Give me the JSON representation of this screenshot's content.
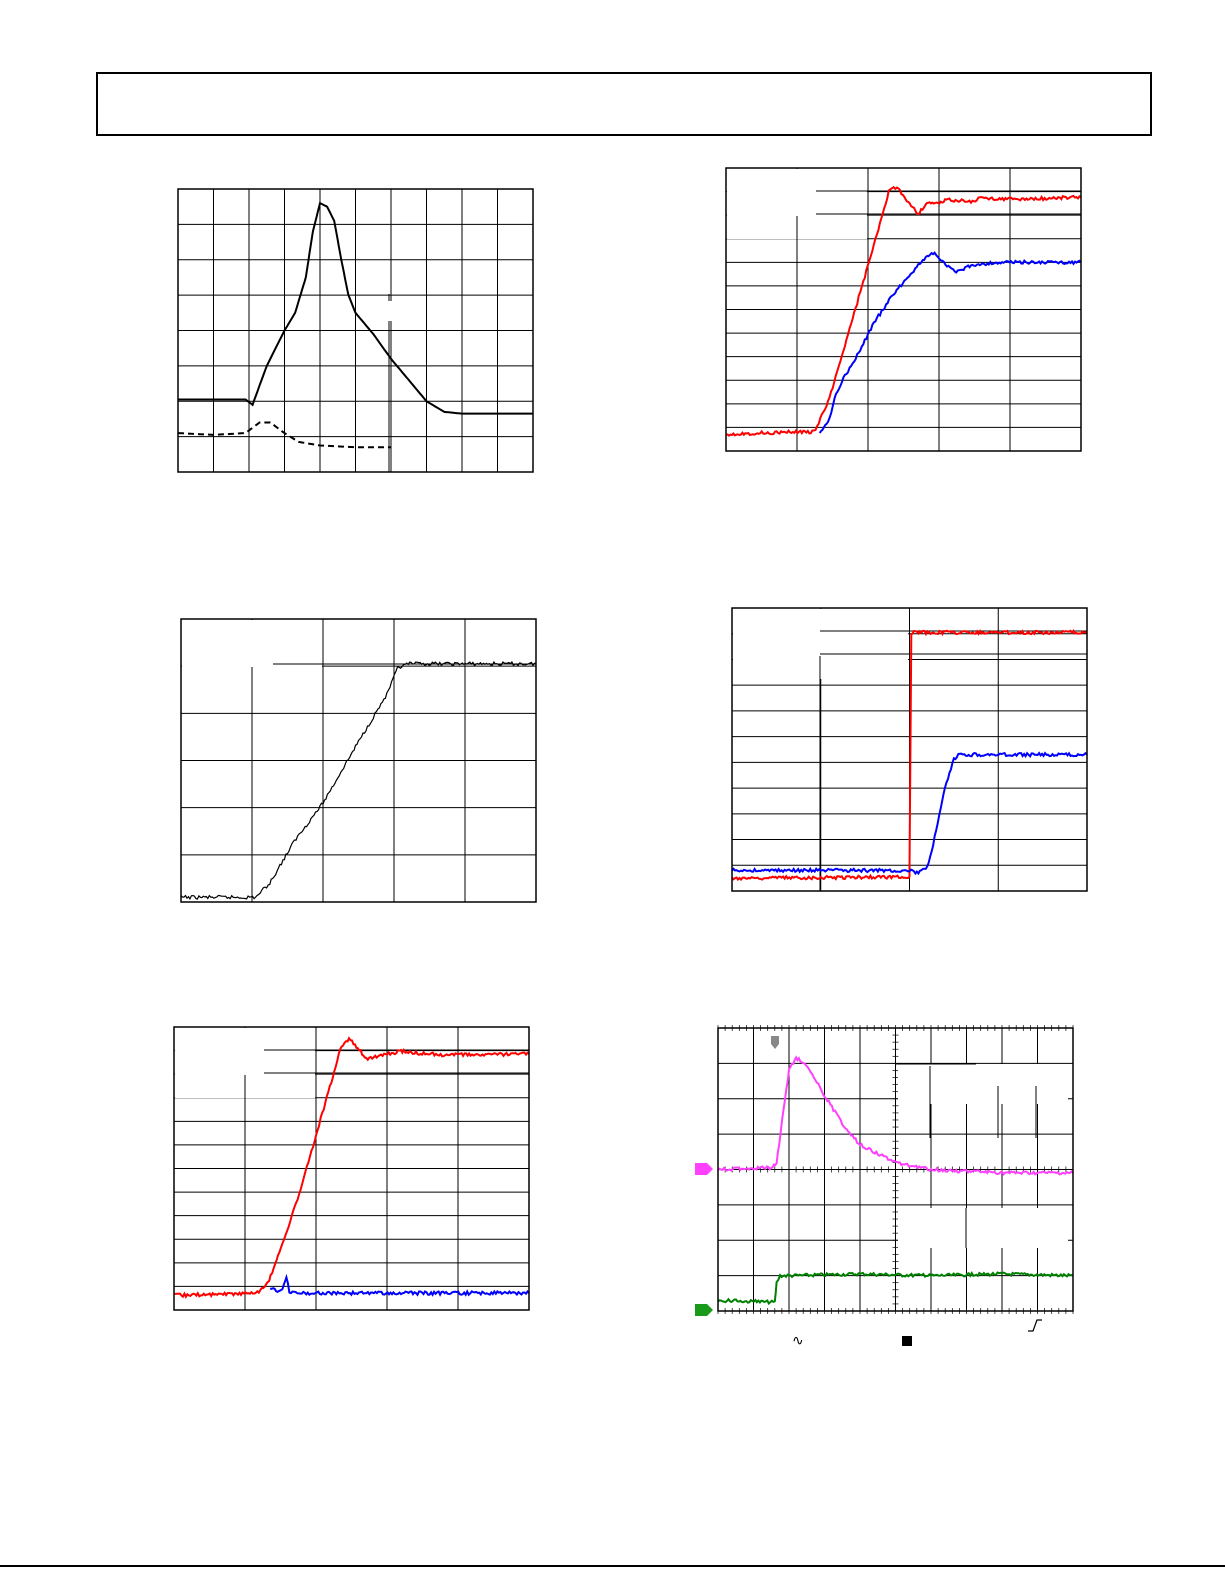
{
  "header": {
    "title": ""
  },
  "colors": {
    "red": "#ff0000",
    "blue": "#0000ff",
    "black": "#000000",
    "magenta": "#ff40ff",
    "green": "#008000",
    "marker_magenta": "#ff40ff",
    "marker_green": "#1a9a1a",
    "trigger_gray": "#888888"
  },
  "footer": {
    "ac_coupling_icon": "∿",
    "run_state_icon": "square-icon",
    "trigger_edge_icon": "rising-edge-icon"
  },
  "chart_data": [
    {
      "id": "panel-1",
      "type": "line",
      "title": "",
      "xlabel": "",
      "ylabel": "",
      "grid": true,
      "x_divisions": 10,
      "y_divisions": 8,
      "series": [
        {
          "style": "solid",
          "color": "#000000",
          "points": [
            [
              0,
              5.95
            ],
            [
              1,
              5.95
            ],
            [
              1.9,
              5.95
            ],
            [
              2.1,
              6.1
            ],
            [
              2.5,
              5.0
            ],
            [
              3.0,
              4.0
            ],
            [
              3.3,
              3.5
            ],
            [
              3.6,
              2.5
            ],
            [
              3.8,
              1.2
            ],
            [
              4.0,
              0.4
            ],
            [
              4.2,
              0.5
            ],
            [
              4.4,
              0.9
            ],
            [
              4.6,
              2.0
            ],
            [
              4.8,
              3.0
            ],
            [
              5.0,
              3.5
            ],
            [
              5.5,
              4.1
            ],
            [
              6.0,
              4.8
            ],
            [
              6.5,
              5.4
            ],
            [
              7.0,
              6.0
            ],
            [
              7.5,
              6.3
            ],
            [
              8.0,
              6.35
            ],
            [
              10,
              6.35
            ]
          ]
        },
        {
          "style": "dashed",
          "color": "#000000",
          "points": [
            [
              0,
              6.9
            ],
            [
              1,
              6.95
            ],
            [
              1.9,
              6.9
            ],
            [
              2.3,
              6.6
            ],
            [
              2.6,
              6.6
            ],
            [
              3.0,
              6.9
            ],
            [
              3.4,
              7.15
            ],
            [
              4.0,
              7.25
            ],
            [
              5.0,
              7.3
            ],
            [
              6.0,
              7.3
            ]
          ]
        }
      ]
    },
    {
      "id": "panel-2",
      "type": "line",
      "title": "",
      "xlabel": "",
      "ylabel": "",
      "grid": true,
      "x_divisions": 5,
      "y_divisions": 6,
      "series": [
        {
          "color": "#000000",
          "points": [
            [
              0,
              5.9
            ],
            [
              1.05,
              5.9
            ],
            [
              1.25,
              5.6
            ],
            [
              1.6,
              4.7
            ],
            [
              2.0,
              3.9
            ],
            [
              2.5,
              2.6
            ],
            [
              2.9,
              1.6
            ],
            [
              3.05,
              1.05
            ],
            [
              3.2,
              0.95
            ],
            [
              5,
              0.95
            ]
          ]
        }
      ]
    },
    {
      "id": "panel-3",
      "type": "line",
      "title": "",
      "xlabel": "",
      "ylabel": "",
      "grid": true,
      "x_divisions": 5,
      "y_divisions": 12,
      "series": [
        {
          "color": "#ff0000",
          "points": [
            [
              0,
              11.0
            ],
            [
              1.75,
              10.9
            ],
            [
              1.85,
              10.7
            ],
            [
              2.1,
              9.5
            ],
            [
              2.6,
              6.0
            ],
            [
              3.0,
              3.2
            ],
            [
              3.3,
              1.0
            ],
            [
              3.4,
              0.8
            ],
            [
              3.5,
              0.9
            ],
            [
              3.7,
              1.4
            ],
            [
              3.9,
              1.9
            ],
            [
              4.1,
              1.4
            ],
            [
              4.3,
              1.5
            ],
            [
              4.5,
              1.3
            ],
            [
              5.0,
              1.4
            ],
            [
              5.15,
              1.25
            ],
            [
              6.0,
              1.3
            ],
            [
              7.2,
              1.2
            ]
          ]
        },
        {
          "color": "#0000ff",
          "points": [
            [
              1.9,
              10.9
            ],
            [
              2.1,
              10.4
            ],
            [
              2.2,
              9.5
            ],
            [
              2.35,
              8.8
            ],
            [
              2.6,
              8.0
            ],
            [
              3.0,
              6.4
            ],
            [
              3.4,
              5.2
            ],
            [
              3.9,
              4.0
            ],
            [
              4.2,
              3.5
            ],
            [
              4.45,
              4.0
            ],
            [
              4.7,
              4.3
            ],
            [
              5.0,
              4.0
            ],
            [
              5.6,
              3.9
            ],
            [
              6.5,
              3.9
            ],
            [
              7.2,
              3.9
            ]
          ]
        }
      ]
    },
    {
      "id": "panel-4",
      "type": "line",
      "title": "",
      "xlabel": "",
      "ylabel": "",
      "grid": true,
      "x_divisions": 4,
      "y_divisions": 11,
      "series": [
        {
          "color": "#ff0000",
          "points": [
            [
              0,
              10.5
            ],
            [
              2.0,
              10.45
            ],
            [
              2.0,
              10.2
            ],
            [
              2.02,
              1.0
            ],
            [
              2.05,
              0.95
            ],
            [
              4.0,
              0.95
            ]
          ]
        },
        {
          "color": "#0000ff",
          "points": [
            [
              0,
              10.2
            ],
            [
              2.0,
              10.2
            ],
            [
              2.1,
              10.3
            ],
            [
              2.2,
              10.1
            ],
            [
              2.3,
              8.7
            ],
            [
              2.4,
              7.0
            ],
            [
              2.5,
              5.9
            ],
            [
              2.55,
              5.7
            ],
            [
              2.7,
              5.7
            ],
            [
              4.0,
              5.7
            ]
          ]
        }
      ]
    },
    {
      "id": "panel-5",
      "type": "line",
      "title": "",
      "xlabel": "",
      "ylabel": "",
      "grid": true,
      "x_divisions": 5,
      "y_divisions": 12,
      "series": [
        {
          "color": "#ff0000",
          "points": [
            [
              0,
              11.1
            ],
            [
              1.6,
              11.0
            ],
            [
              1.75,
              10.9
            ],
            [
              1.9,
              10.6
            ],
            [
              2.2,
              9.0
            ],
            [
              2.6,
              6.5
            ],
            [
              3.1,
              2.9
            ],
            [
              3.4,
              0.75
            ],
            [
              3.55,
              0.5
            ],
            [
              3.7,
              0.8
            ],
            [
              3.9,
              1.3
            ],
            [
              4.2,
              1.2
            ],
            [
              4.6,
              1.0
            ],
            [
              5.0,
              1.1
            ],
            [
              5.5,
              1.15
            ],
            [
              6.5,
              1.15
            ],
            [
              7.2,
              1.1
            ]
          ]
        },
        {
          "color": "#0000ff",
          "points": [
            [
              1.95,
              10.85
            ],
            [
              2.1,
              10.9
            ],
            [
              2.2,
              10.9
            ],
            [
              2.28,
              10.3
            ],
            [
              2.34,
              10.95
            ],
            [
              2.5,
              11.0
            ],
            [
              5.0,
              11.0
            ],
            [
              7.2,
              11.0
            ]
          ]
        }
      ]
    },
    {
      "id": "panel-6",
      "type": "line",
      "title": "",
      "xlabel": "",
      "ylabel": "",
      "grid": true,
      "x_divisions": 10,
      "y_divisions": 8,
      "series": [
        {
          "color": "#ff40ff",
          "points": [
            [
              0,
              4.0
            ],
            [
              1.5,
              3.95
            ],
            [
              1.65,
              3.8
            ],
            [
              1.72,
              3.3
            ],
            [
              1.85,
              2.3
            ],
            [
              2.0,
              1.2
            ],
            [
              2.2,
              0.85
            ],
            [
              2.4,
              0.95
            ],
            [
              2.7,
              1.4
            ],
            [
              3.0,
              1.9
            ],
            [
              3.5,
              2.7
            ],
            [
              4.0,
              3.3
            ],
            [
              5.0,
              3.8
            ],
            [
              6.0,
              4.0
            ],
            [
              7.0,
              4.05
            ],
            [
              8.0,
              4.1
            ],
            [
              10,
              4.1
            ]
          ]
        },
        {
          "color": "#008000",
          "points": [
            [
              0,
              7.7
            ],
            [
              1.6,
              7.75
            ],
            [
              1.65,
              7.2
            ],
            [
              1.75,
              7.0
            ],
            [
              2.0,
              7.0
            ],
            [
              4.0,
              6.95
            ],
            [
              6.0,
              7.0
            ],
            [
              8.0,
              6.95
            ],
            [
              10,
              7.0
            ]
          ]
        }
      ]
    }
  ]
}
